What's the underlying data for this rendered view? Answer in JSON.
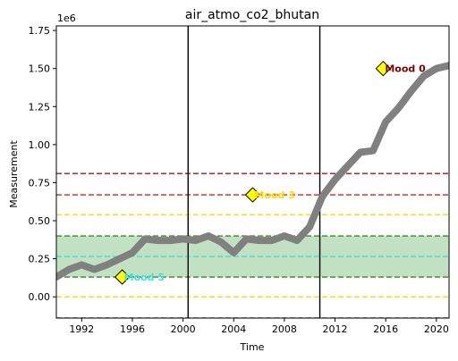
{
  "chart_data": {
    "type": "line",
    "title": "air_atmo_co2_bhutan",
    "xlabel": "Time",
    "ylabel": "Measurement",
    "y_scale_label": "1e6",
    "xlim": [
      1990,
      2021
    ],
    "ylim": [
      -0.14,
      1.78
    ],
    "x_ticks": [
      1992,
      1996,
      2000,
      2004,
      2008,
      2012,
      2016,
      2020
    ],
    "y_ticks": [
      0.0,
      0.25,
      0.5,
      0.75,
      1.0,
      1.25,
      1.5,
      1.75
    ],
    "y_tick_labels": [
      "0.00",
      "0.25",
      "0.50",
      "0.75",
      "1.00",
      "1.25",
      "1.50",
      "1.75"
    ],
    "series": [
      {
        "color": "#808080",
        "x": [
          1990,
          1991,
          1992,
          1993,
          1994,
          1995,
          1996,
          1997,
          1998,
          1999,
          2000,
          2001,
          2002,
          2003,
          2004,
          2005,
          2006,
          2007,
          2008,
          2009,
          2010,
          2011,
          2012,
          2013,
          2014,
          2015,
          2016,
          2017,
          2018,
          2019,
          2020,
          2021
        ],
        "y": [
          0.13,
          0.18,
          0.21,
          0.18,
          0.21,
          0.25,
          0.29,
          0.38,
          0.37,
          0.37,
          0.38,
          0.37,
          0.4,
          0.36,
          0.29,
          0.38,
          0.37,
          0.37,
          0.4,
          0.37,
          0.46,
          0.66,
          0.77,
          0.86,
          0.95,
          0.96,
          1.15,
          1.24,
          1.35,
          1.45,
          1.5,
          1.52
        ]
      }
    ],
    "band": {
      "y0": 0.13,
      "y1": 0.4,
      "color": "#90c990"
    },
    "hlines": [
      {
        "y": 0.13,
        "color": "#3a8a1a"
      },
      {
        "y": 0.4,
        "color": "#3a8a1a"
      },
      {
        "y": 0.265,
        "color": "#40e0d0"
      },
      {
        "y": 0.0,
        "color": "#ffd700"
      },
      {
        "y": 0.54,
        "color": "#ffd700"
      },
      {
        "y": 0.67,
        "color": "#d62020"
      },
      {
        "y": 0.81,
        "color": "#b01010"
      },
      {
        "y": -0.14,
        "color": "#b01010"
      }
    ],
    "vlines": [
      2000.4,
      2010.8
    ],
    "annotations": [
      {
        "x": 1995.2,
        "y": 0.13,
        "text": "Mood 5",
        "color": "#40e0d0"
      },
      {
        "x": 2005.5,
        "y": 0.67,
        "text": "Mood 3",
        "color": "#ffd700"
      },
      {
        "x": 2015.8,
        "y": 1.5,
        "text": "Mood 0",
        "color": "#800000"
      }
    ]
  }
}
